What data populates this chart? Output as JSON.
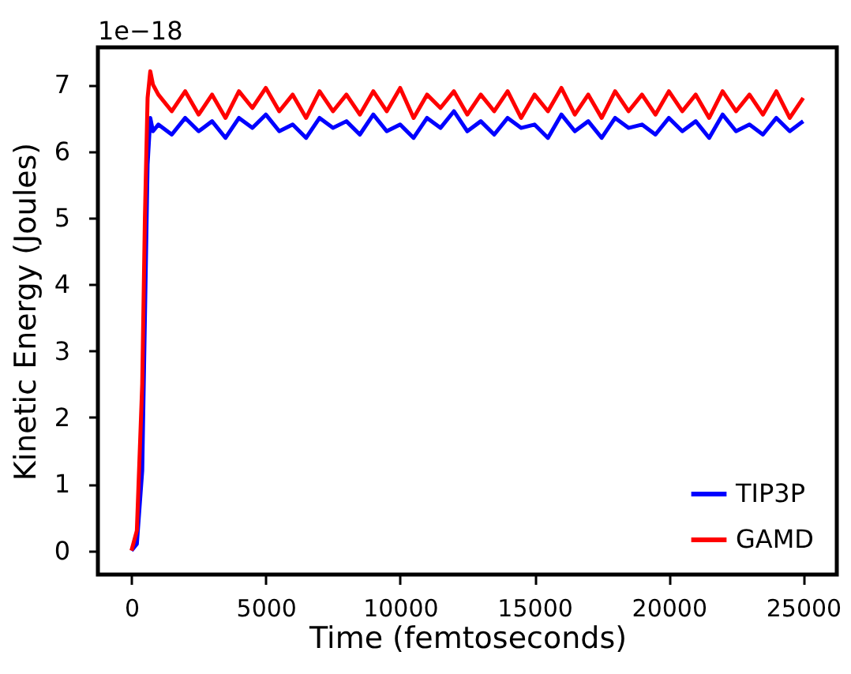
{
  "chart_data": {
    "type": "line",
    "xlabel": "Time (femtoseconds)",
    "ylabel": "Kinetic Energy (Joules)",
    "annotations": [
      "1e−18"
    ],
    "x": [
      0,
      200,
      400,
      500,
      600,
      700,
      800,
      1000,
      1500,
      2000,
      2500,
      3000,
      3500,
      4000,
      4500,
      5000,
      5500,
      6000,
      6500,
      7000,
      7500,
      8000,
      8500,
      9000,
      9500,
      10000,
      10500,
      11000,
      11500,
      12000,
      12500,
      13000,
      13500,
      14000,
      14500,
      15000,
      15500,
      16000,
      16500,
      17000,
      17500,
      18000,
      18500,
      19000,
      19500,
      20000,
      20500,
      21000,
      21500,
      22000,
      22500,
      23000,
      23500,
      24000,
      24500,
      25000
    ],
    "series": [
      {
        "name": "TIP3P",
        "color": "#0000ff",
        "values": [
          0,
          0.1,
          1.2,
          3.5,
          5.8,
          6.5,
          6.3,
          6.4,
          6.25,
          6.5,
          6.3,
          6.45,
          6.2,
          6.5,
          6.35,
          6.55,
          6.3,
          6.4,
          6.2,
          6.5,
          6.35,
          6.45,
          6.25,
          6.55,
          6.3,
          6.4,
          6.2,
          6.5,
          6.35,
          6.6,
          6.3,
          6.45,
          6.25,
          6.5,
          6.35,
          6.4,
          6.2,
          6.55,
          6.3,
          6.45,
          6.2,
          6.5,
          6.35,
          6.4,
          6.25,
          6.5,
          6.3,
          6.45,
          6.2,
          6.55,
          6.3,
          6.4,
          6.25,
          6.5,
          6.3,
          6.45
        ]
      },
      {
        "name": "GAMD",
        "color": "#ff0000",
        "values": [
          0,
          0.3,
          2.5,
          5.0,
          6.8,
          7.2,
          7.0,
          6.85,
          6.6,
          6.9,
          6.55,
          6.85,
          6.5,
          6.9,
          6.65,
          6.95,
          6.6,
          6.85,
          6.5,
          6.9,
          6.6,
          6.85,
          6.55,
          6.9,
          6.6,
          6.95,
          6.5,
          6.85,
          6.65,
          6.9,
          6.55,
          6.85,
          6.6,
          6.9,
          6.5,
          6.85,
          6.6,
          6.95,
          6.55,
          6.85,
          6.5,
          6.9,
          6.6,
          6.85,
          6.55,
          6.9,
          6.6,
          6.85,
          6.5,
          6.9,
          6.6,
          6.85,
          6.55,
          6.9,
          6.5,
          6.8
        ]
      }
    ],
    "xlim": [
      -1250,
      26250
    ],
    "xticks": [
      0,
      5000,
      10000,
      15000,
      20000,
      25000
    ],
    "ylim": [
      -0.36,
      7.56
    ],
    "yticks": [
      0,
      1,
      2,
      3,
      4,
      5,
      6,
      7
    ],
    "legend": "bottom right",
    "line_style": "solid"
  }
}
